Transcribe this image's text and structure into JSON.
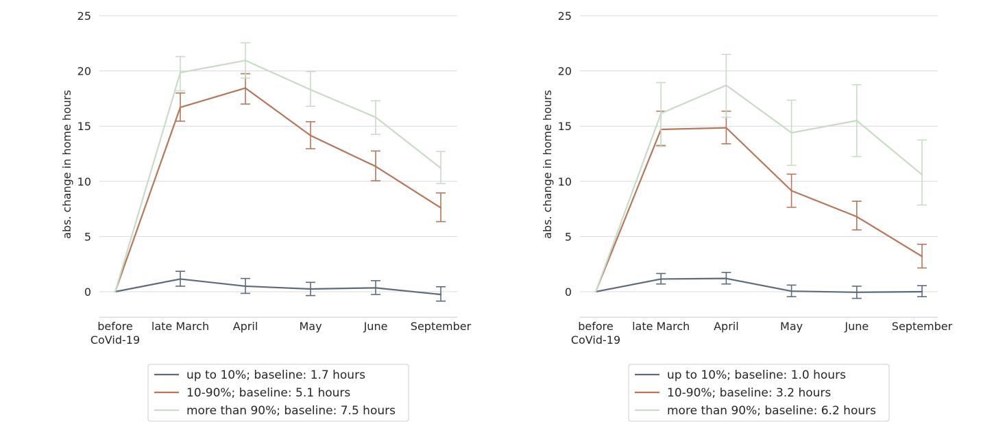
{
  "chart_data": [
    {
      "type": "line",
      "title": "",
      "xlabel": "",
      "ylabel": "abs. change in home hours",
      "categories": [
        "before\nCoVid-19",
        "late March",
        "April",
        "May",
        "June",
        "September"
      ],
      "yticks": [
        0,
        5,
        10,
        15,
        20,
        25
      ],
      "ylim": [
        -2,
        25
      ],
      "grid": "horizontal",
      "legend_position": "below",
      "series": [
        {
          "name": "up to 10%; baseline: 1.7 hours",
          "color": "#5a6b7b",
          "values": [
            0,
            1.15,
            0.5,
            0.25,
            0.35,
            -0.25
          ],
          "err_low": [
            null,
            0.5,
            -0.15,
            -0.35,
            -0.25,
            -0.85
          ],
          "err_high": [
            null,
            1.85,
            1.2,
            0.85,
            1.0,
            0.45
          ]
        },
        {
          "name": "10-90%; baseline: 5.1 hours",
          "color": "#b5765a",
          "values": [
            0,
            16.7,
            18.45,
            14.15,
            11.35,
            7.6
          ],
          "err_low": [
            null,
            15.45,
            17.0,
            12.95,
            10.05,
            6.35
          ],
          "err_high": [
            null,
            18.0,
            19.75,
            15.4,
            12.75,
            8.95
          ]
        },
        {
          "name": "more than 90%; baseline: 7.5 hours",
          "color": "#c8dcc5",
          "values": [
            0,
            19.85,
            20.95,
            18.3,
            15.8,
            11.2
          ],
          "err_low": [
            null,
            18.2,
            19.35,
            16.8,
            14.25,
            9.8
          ],
          "err_high": [
            null,
            21.3,
            22.55,
            19.95,
            17.3,
            12.7
          ]
        }
      ]
    },
    {
      "type": "line",
      "title": "",
      "xlabel": "",
      "ylabel": "abs. change in home hours",
      "categories": [
        "before\nCoVid-19",
        "late March",
        "April",
        "May",
        "June",
        "September"
      ],
      "yticks": [
        0,
        5,
        10,
        15,
        20,
        25
      ],
      "ylim": [
        -2,
        25
      ],
      "grid": "horizontal",
      "legend_position": "below",
      "series": [
        {
          "name": "up to 10%; baseline: 1.0 hours",
          "color": "#5a6b7b",
          "values": [
            0,
            1.15,
            1.2,
            0.05,
            -0.05,
            0.0
          ],
          "err_low": [
            null,
            0.7,
            0.7,
            -0.45,
            -0.6,
            -0.45
          ],
          "err_high": [
            null,
            1.65,
            1.75,
            0.6,
            0.5,
            0.55
          ]
        },
        {
          "name": "10-90%; baseline: 3.2 hours",
          "color": "#b5765a",
          "values": [
            0,
            14.7,
            14.85,
            9.15,
            6.8,
            3.2
          ],
          "err_low": [
            null,
            13.25,
            13.4,
            7.65,
            5.6,
            2.15
          ],
          "err_high": [
            null,
            16.35,
            16.35,
            10.65,
            8.2,
            4.3
          ]
        },
        {
          "name": "more than 90%; baseline: 6.2 hours",
          "color": "#c8dcc5",
          "values": [
            0,
            16.15,
            18.7,
            14.4,
            15.5,
            10.6
          ],
          "err_low": [
            null,
            13.15,
            15.8,
            11.45,
            12.25,
            7.85
          ],
          "err_high": [
            null,
            18.95,
            21.5,
            17.35,
            18.75,
            13.75
          ]
        }
      ]
    }
  ]
}
